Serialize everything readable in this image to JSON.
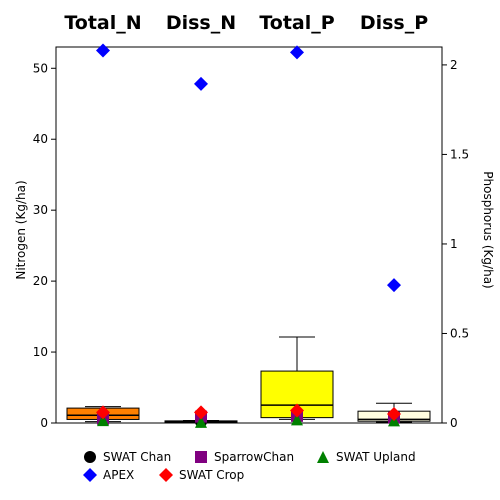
{
  "chart_data": {
    "type": "box",
    "categories": [
      "Total_N",
      "Diss_N",
      "Total_P",
      "Diss_P"
    ],
    "category_axis": [
      "left",
      "left",
      "right",
      "right"
    ],
    "left_axis": {
      "label": "Nitrogen (Kg/ha)",
      "ylim": [
        0,
        53
      ],
      "ticks": [
        0,
        10,
        20,
        30,
        40,
        50
      ],
      "tick_labels": [
        "0",
        "10",
        "20",
        "30",
        "40",
        "50"
      ]
    },
    "right_axis": {
      "label": "Phosphorus (Kg/ha)",
      "ylim": [
        0,
        2.1
      ],
      "ticks": [
        0,
        0.5,
        1,
        1.5,
        2
      ],
      "tick_labels": [
        "0",
        "0.5",
        "1",
        "1.5",
        "2"
      ]
    },
    "boxes": [
      {
        "category": "Total_N",
        "min": 0.2,
        "q1": 0.5,
        "median": 1.1,
        "q3": 2.1,
        "max": 2.3,
        "fill": "#ff8000"
      },
      {
        "category": "Diss_N",
        "min": 0.05,
        "q1": 0.1,
        "median": 0.2,
        "q3": 0.3,
        "max": 0.35,
        "fill": "#ff8000"
      },
      {
        "category": "Total_P",
        "min": 0.02,
        "q1": 0.03,
        "median": 0.1,
        "q3": 0.29,
        "max": 0.48,
        "fill": "#ffff00"
      },
      {
        "category": "Diss_P",
        "min": 0.005,
        "q1": 0.01,
        "median": 0.02,
        "q3": 0.066,
        "max": 0.11,
        "fill": "#fffde0"
      }
    ],
    "series": [
      {
        "name": "SWAT Chan",
        "marker": "circle",
        "color": "#000000",
        "values": [
          0.5,
          0.2,
          0.03,
          0.02
        ]
      },
      {
        "name": "SparrowChan",
        "marker": "square",
        "color": "#800080",
        "values": [
          0.6,
          0.9,
          0.04,
          0.03
        ]
      },
      {
        "name": "SWAT Upland",
        "marker": "triangle",
        "color": "#008000",
        "values": [
          0.4,
          0.15,
          0.02,
          0.015
        ]
      },
      {
        "name": "APEX",
        "marker": "diamond",
        "color": "#0000ff",
        "values": [
          52.5,
          47.8,
          2.07,
          0.77
        ]
      },
      {
        "name": "SWAT Crop",
        "marker": "diamond",
        "color": "#ff0000",
        "values": [
          1.5,
          1.5,
          0.07,
          0.05
        ]
      }
    ],
    "legend_position": "bottom",
    "grid": false
  }
}
